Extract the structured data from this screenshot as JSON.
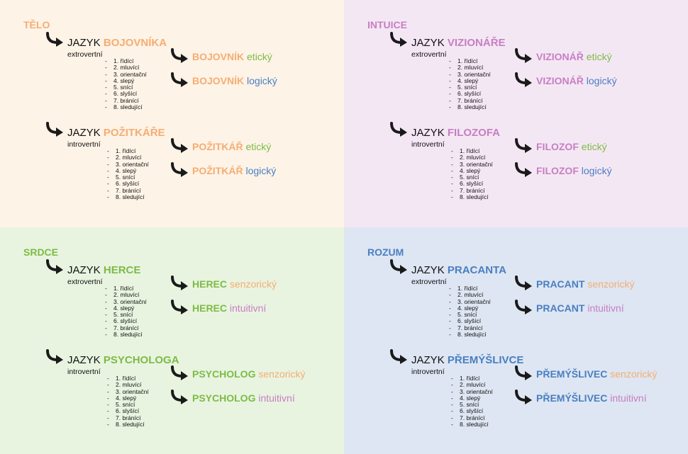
{
  "colors": {
    "bg_telo": "#fef3e7",
    "bg_intuice": "#f4e7f4",
    "bg_srdce": "#e8f4e0",
    "bg_rozum": "#dde6f2",
    "orange": "#f5ad72",
    "purple": "#c77ec3",
    "green": "#7dbb45",
    "blue": "#4a7ec2",
    "arrow": "#1a1a1a"
  },
  "arrow_icon": "curved-arrow-icon",
  "quadrants": [
    {
      "title": "TĚLO",
      "color": "orange",
      "languages": [
        {
          "prefix": "JAZYK ",
          "name": "BOJOVNÍKA",
          "subtitle": "extrovertní",
          "functions": [
            "1. řídící",
            "2. mluvící",
            "3. orientační",
            "4. slepý",
            "5. snící",
            "6. slyšící",
            "7. bránící",
            "8. sledující"
          ],
          "variants": [
            {
              "name": "BOJOVNÍK",
              "suffix": " etický",
              "suffix_color": "green"
            },
            {
              "name": "BOJOVNÍK",
              "suffix": " logický",
              "suffix_color": "blue"
            }
          ]
        },
        {
          "prefix": "JAZYK ",
          "name": "POŽITKÁŘE",
          "subtitle": "introvertní",
          "functions": [
            "1. řídící",
            "2. mluvící",
            "3. orientační",
            "4. slepý",
            "5. snící",
            "6. slyšící",
            "7. bránící",
            "8. sledující"
          ],
          "variants": [
            {
              "name": "POŽITKÁŘ",
              "suffix": " etický",
              "suffix_color": "green"
            },
            {
              "name": "POŽITKÁŘ",
              "suffix": " logický",
              "suffix_color": "blue"
            }
          ]
        }
      ]
    },
    {
      "title": "INTUICE",
      "color": "purple",
      "languages": [
        {
          "prefix": "JAZYK ",
          "name": "VIZIONÁŘE",
          "subtitle": "extrovertní",
          "functions": [
            "1. řídící",
            "2. mluvící",
            "3. orientační",
            "4. slepý",
            "5. snící",
            "6. slyšící",
            "7. bránící",
            "8. sledující"
          ],
          "variants": [
            {
              "name": "VIZIONÁŘ",
              "suffix": " etický",
              "suffix_color": "green"
            },
            {
              "name": "VIZIONÁŘ",
              "suffix": " logický",
              "suffix_color": "blue"
            }
          ]
        },
        {
          "prefix": "JAZYK ",
          "name": "FILOZOFA",
          "subtitle": "introvertní",
          "functions": [
            "1. řídící",
            "2. mluvící",
            "3. orientační",
            "4. slepý",
            "5. snící",
            "6. slyšící",
            "7. bránící",
            "8. sledující"
          ],
          "variants": [
            {
              "name": "FILOZOF",
              "suffix": " etický",
              "suffix_color": "green"
            },
            {
              "name": "FILOZOF",
              "suffix": " logický",
              "suffix_color": "blue"
            }
          ]
        }
      ]
    },
    {
      "title": "SRDCE",
      "color": "green",
      "languages": [
        {
          "prefix": "JAZYK ",
          "name": "HERCE",
          "subtitle": "extrovertní",
          "functions": [
            "1. řídící",
            "2. mluvící",
            "3. orientační",
            "4. slepý",
            "5. snící",
            "6. slyšící",
            "7. bránící",
            "8. sledující"
          ],
          "variants": [
            {
              "name": "HEREC",
              "suffix": " senzorický",
              "suffix_color": "orange"
            },
            {
              "name": "HEREC",
              "suffix": " intuitivní",
              "suffix_color": "purple"
            }
          ]
        },
        {
          "prefix": "JAZYK ",
          "name": "PSYCHOLOGA",
          "subtitle": "introvertní",
          "functions": [
            "1. řídící",
            "2. mluvící",
            "3. orientační",
            "4. slepý",
            "5. snící",
            "6. slyšící",
            "7. bránící",
            "8. sledující"
          ],
          "variants": [
            {
              "name": "PSYCHOLOG",
              "suffix": " senzorický",
              "suffix_color": "orange"
            },
            {
              "name": "PSYCHOLOG",
              "suffix": " intuitivní",
              "suffix_color": "purple"
            }
          ]
        }
      ]
    },
    {
      "title": "ROZUM",
      "color": "blue",
      "languages": [
        {
          "prefix": "JAZYK ",
          "name": "PRACANTA",
          "subtitle": "extrovertní",
          "functions": [
            "1. řídící",
            "2. mluvící",
            "3. orientační",
            "4. slepý",
            "5. snící",
            "6. slyšící",
            "7. bránící",
            "8. sledující"
          ],
          "variants": [
            {
              "name": "PRACANT",
              "suffix": " senzorický",
              "suffix_color": "orange"
            },
            {
              "name": "PRACANT",
              "suffix": " intuitivní",
              "suffix_color": "purple"
            }
          ]
        },
        {
          "prefix": "JAZYK ",
          "name": "PŘEMÝŠLIVCE",
          "subtitle": "introvertní",
          "functions": [
            "1. řídící",
            "2. mluvící",
            "3. orientační",
            "4. slepý",
            "5. snící",
            "6. slyšící",
            "7. bránící",
            "8. sledující"
          ],
          "variants": [
            {
              "name": "PŘEMÝŠLIVEC",
              "suffix": " senzorický",
              "suffix_color": "orange"
            },
            {
              "name": "PŘEMÝŠLIVEC",
              "suffix": " intuitivní",
              "suffix_color": "purple"
            }
          ]
        }
      ]
    }
  ]
}
